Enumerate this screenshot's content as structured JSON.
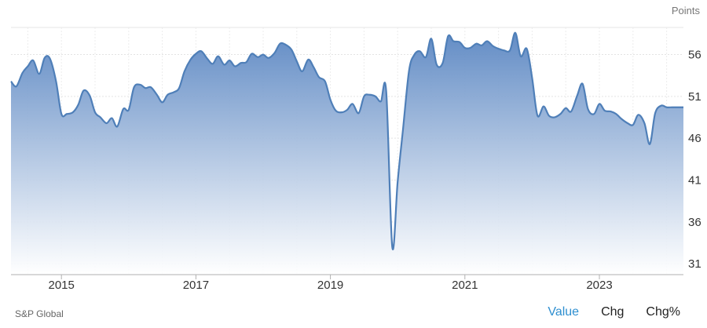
{
  "chart_data": {
    "type": "area",
    "unit_label": "Points",
    "source": "S&P Global",
    "x_ticks": [
      "2015",
      "2017",
      "2019",
      "2021",
      "2023"
    ],
    "y_ticks": [
      31,
      36,
      41,
      46,
      51,
      56
    ],
    "ylim": [
      30,
      60
    ],
    "xlim": [
      2014.25,
      2024.25
    ],
    "grid": true,
    "colors": {
      "line": "#4f7fb8",
      "fill_top": "#5a86c2",
      "fill_bottom": "#ffffff"
    },
    "x": [
      2014.25,
      2014.33,
      2014.42,
      2014.5,
      2014.58,
      2014.67,
      2014.75,
      2014.83,
      2014.92,
      2015.0,
      2015.08,
      2015.17,
      2015.25,
      2015.33,
      2015.42,
      2015.5,
      2015.58,
      2015.67,
      2015.75,
      2015.83,
      2015.92,
      2016.0,
      2016.08,
      2016.17,
      2016.25,
      2016.33,
      2016.42,
      2016.5,
      2016.58,
      2016.67,
      2016.75,
      2016.83,
      2016.92,
      2017.0,
      2017.08,
      2017.17,
      2017.25,
      2017.33,
      2017.42,
      2017.5,
      2017.58,
      2017.67,
      2017.75,
      2017.83,
      2017.92,
      2018.0,
      2018.08,
      2018.17,
      2018.25,
      2018.33,
      2018.42,
      2018.5,
      2018.58,
      2018.67,
      2018.75,
      2018.83,
      2018.92,
      2019.0,
      2019.08,
      2019.17,
      2019.25,
      2019.33,
      2019.42,
      2019.5,
      2019.58,
      2019.67,
      2019.75,
      2019.83,
      2019.92,
      2020.0,
      2020.08,
      2020.17,
      2020.25,
      2020.33,
      2020.42,
      2020.5,
      2020.58,
      2020.67,
      2020.75,
      2020.83,
      2020.92,
      2021.0,
      2021.08,
      2021.17,
      2021.25,
      2021.33,
      2021.42,
      2021.5,
      2021.58,
      2021.67,
      2021.75,
      2021.83,
      2021.92,
      2022.0,
      2022.08,
      2022.17,
      2022.25,
      2022.33,
      2022.42,
      2022.5,
      2022.58,
      2022.67,
      2022.75,
      2022.83,
      2022.92,
      2023.0,
      2023.08,
      2023.17,
      2023.25,
      2023.33,
      2023.42,
      2023.5,
      2023.58,
      2023.67,
      2023.75,
      2023.83,
      2023.92,
      2024.0,
      2024.08,
      2024.17,
      2024.25
    ],
    "values": [
      52.8,
      52.2,
      53.8,
      54.6,
      55.3,
      53.7,
      55.6,
      55.5,
      52.8,
      48.9,
      48.9,
      49.1,
      50.0,
      51.7,
      51.1,
      49.1,
      48.5,
      47.8,
      48.4,
      47.4,
      49.5,
      49.4,
      52.1,
      52.4,
      52.0,
      52.1,
      51.2,
      50.3,
      51.2,
      51.5,
      52.0,
      54.0,
      55.4,
      56.1,
      56.4,
      55.5,
      54.9,
      55.8,
      54.8,
      55.3,
      54.6,
      55.0,
      55.1,
      56.1,
      55.7,
      56.0,
      55.6,
      56.2,
      57.3,
      57.2,
      56.6,
      55.2,
      54.0,
      55.4,
      54.5,
      53.3,
      52.8,
      50.6,
      49.3,
      49.1,
      49.4,
      50.1,
      49.0,
      51.0,
      51.2,
      51.0,
      50.4,
      51.6,
      33.0,
      40.8,
      47.1,
      54.1,
      56.0,
      56.4,
      55.7,
      57.9,
      54.8,
      55.0,
      58.2,
      57.6,
      57.5,
      56.8,
      56.8,
      57.3,
      57.1,
      57.6,
      57.0,
      56.7,
      56.5,
      56.5,
      58.6,
      55.8,
      56.7,
      53.2,
      48.7,
      49.8,
      48.7,
      48.5,
      48.9,
      49.6,
      49.2,
      51.1,
      52.5,
      49.5,
      48.9,
      50.1,
      49.3,
      49.2,
      48.9,
      48.3,
      47.8,
      47.6,
      48.8,
      47.8,
      45.3,
      49.0,
      49.9,
      49.7,
      49.7,
      49.7,
      49.7
    ]
  },
  "tabs": [
    {
      "label": "Value",
      "active": true
    },
    {
      "label": "Chg",
      "active": false
    },
    {
      "label": "Chg%",
      "active": false
    }
  ]
}
